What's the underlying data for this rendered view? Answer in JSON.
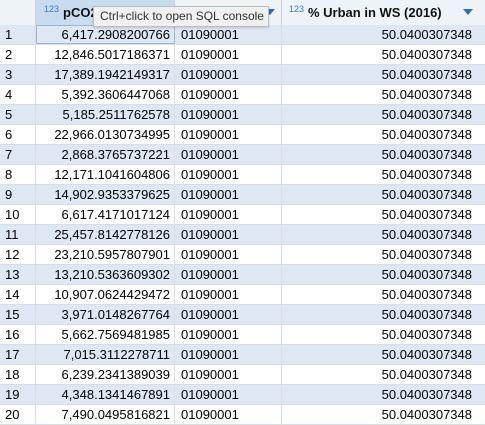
{
  "columns": [
    {
      "type": "123",
      "name": "pCO2"
    },
    {
      "type": "",
      "name": ""
    },
    {
      "type": "123",
      "name": "% Urban in WS (2016)"
    }
  ],
  "tooltip": "Ctrl+click to open SQL console",
  "rows": [
    {
      "n": "1",
      "pco2": "6,417.2908200766",
      "code": "01090001",
      "urban": "50.0400307348"
    },
    {
      "n": "2",
      "pco2": "12,846.5017186371",
      "code": "01090001",
      "urban": "50.0400307348"
    },
    {
      "n": "3",
      "pco2": "17,389.1942149317",
      "code": "01090001",
      "urban": "50.0400307348"
    },
    {
      "n": "4",
      "pco2": "5,392.3606447068",
      "code": "01090001",
      "urban": "50.0400307348"
    },
    {
      "n": "5",
      "pco2": "5,185.2511762578",
      "code": "01090001",
      "urban": "50.0400307348"
    },
    {
      "n": "6",
      "pco2": "22,966.0130734995",
      "code": "01090001",
      "urban": "50.0400307348"
    },
    {
      "n": "7",
      "pco2": "2,868.3765737221",
      "code": "01090001",
      "urban": "50.0400307348"
    },
    {
      "n": "8",
      "pco2": "12,171.1041604806",
      "code": "01090001",
      "urban": "50.0400307348"
    },
    {
      "n": "9",
      "pco2": "14,902.9353379625",
      "code": "01090001",
      "urban": "50.0400307348"
    },
    {
      "n": "10",
      "pco2": "6,617.4171017124",
      "code": "01090001",
      "urban": "50.0400307348"
    },
    {
      "n": "11",
      "pco2": "25,457.8142778126",
      "code": "01090001",
      "urban": "50.0400307348"
    },
    {
      "n": "12",
      "pco2": "23,210.5957807901",
      "code": "01090001",
      "urban": "50.0400307348"
    },
    {
      "n": "13",
      "pco2": "13,210.5363609302",
      "code": "01090001",
      "urban": "50.0400307348"
    },
    {
      "n": "14",
      "pco2": "10,907.0624429472",
      "code": "01090001",
      "urban": "50.0400307348"
    },
    {
      "n": "15",
      "pco2": "3,971.0148267764",
      "code": "01090001",
      "urban": "50.0400307348"
    },
    {
      "n": "16",
      "pco2": "5,662.7569481985",
      "code": "01090001",
      "urban": "50.0400307348"
    },
    {
      "n": "17",
      "pco2": "7,015.3112278711",
      "code": "01090001",
      "urban": "50.0400307348"
    },
    {
      "n": "18",
      "pco2": "6,239.2341389039",
      "code": "01090001",
      "urban": "50.0400307348"
    },
    {
      "n": "19",
      "pco2": "4,348.1341467891",
      "code": "01090001",
      "urban": "50.0400307348"
    },
    {
      "n": "20",
      "pco2": "7,490.0495816821",
      "code": "01090001",
      "urban": "50.0400307348"
    }
  ]
}
